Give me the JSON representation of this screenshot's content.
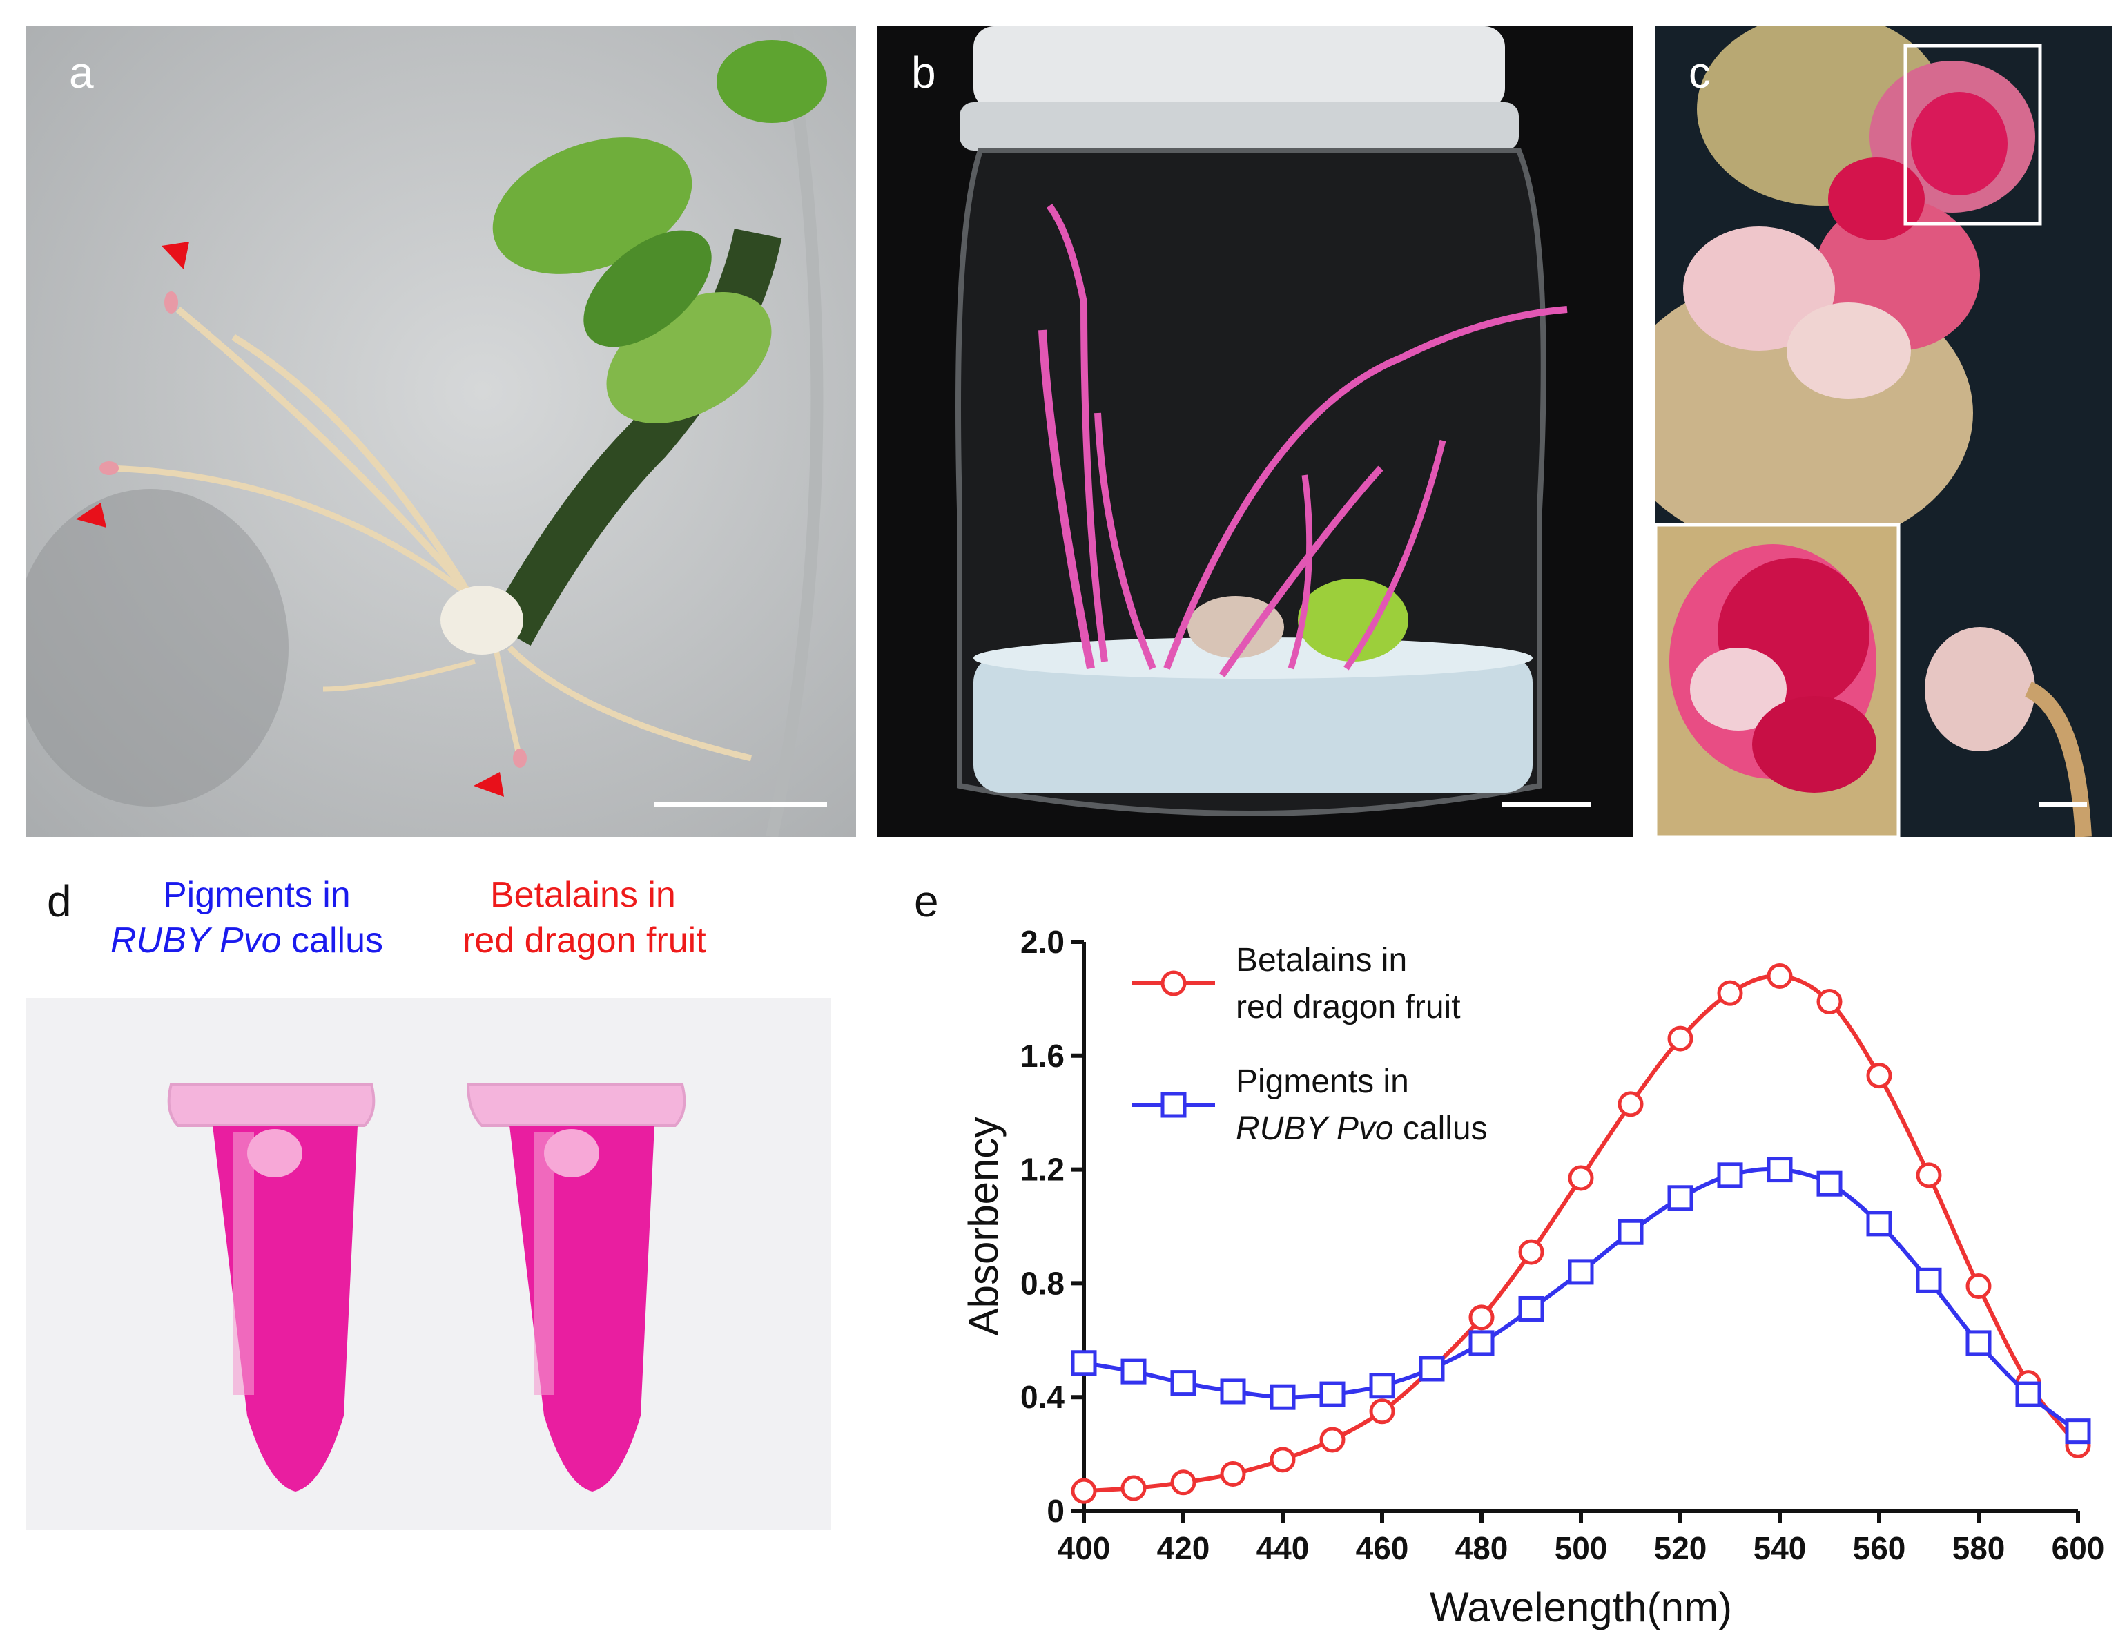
{
  "figure": {
    "panels": {
      "a": {
        "label": "a"
      },
      "b": {
        "label": "b"
      },
      "c": {
        "label": "c"
      },
      "d": {
        "label": "d",
        "caption_left_line1": "Pigments in",
        "caption_left_line2_italic": "RUBY Pvo",
        "caption_left_line2_rest": " callus",
        "caption_right_line1": "Betalains in",
        "caption_right_line2": "red dragon fruit"
      },
      "e": {
        "label": "e"
      }
    }
  },
  "colors": {
    "red_series": "#ee3333",
    "blue_series": "#3333ee",
    "caption_blue": "#1a1aee",
    "caption_red": "#ee1a1a",
    "tube_pink": "#e91ea0",
    "arrowhead_red": "#e8101a"
  },
  "chart_data": {
    "type": "line",
    "xlabel": "Wavelength(nm)",
    "ylabel": "Absorbency",
    "xlim": [
      400,
      600
    ],
    "ylim": [
      0,
      2.0
    ],
    "xticks": [
      "400",
      "420",
      "440",
      "460",
      "480",
      "500",
      "520",
      "540",
      "560",
      "580",
      "600"
    ],
    "yticks": [
      "0",
      "0.4",
      "0.8",
      "1.2",
      "1.6",
      "2.0"
    ],
    "x": [
      400,
      410,
      420,
      430,
      440,
      450,
      460,
      470,
      480,
      490,
      500,
      510,
      520,
      530,
      540,
      550,
      560,
      570,
      580,
      590,
      600
    ],
    "series": [
      {
        "legend_line1": "Betalains in",
        "legend_line2": "red dragon fruit",
        "marker": "circle",
        "color": "#ee3333",
        "values": [
          0.07,
          0.08,
          0.1,
          0.13,
          0.18,
          0.25,
          0.35,
          0.5,
          0.68,
          0.91,
          1.17,
          1.43,
          1.66,
          1.82,
          1.88,
          1.79,
          1.53,
          1.18,
          0.79,
          0.45,
          0.23
        ]
      },
      {
        "legend_line1": "Pigments in",
        "legend_line2_italic": "RUBY Pvo",
        "legend_line2_rest": " callus",
        "marker": "square",
        "color": "#3333ee",
        "values": [
          0.52,
          0.49,
          0.45,
          0.42,
          0.4,
          0.41,
          0.44,
          0.5,
          0.59,
          0.71,
          0.84,
          0.98,
          1.1,
          1.18,
          1.2,
          1.15,
          1.01,
          0.81,
          0.59,
          0.41,
          0.28
        ]
      }
    ],
    "legend_position": "top-left"
  }
}
